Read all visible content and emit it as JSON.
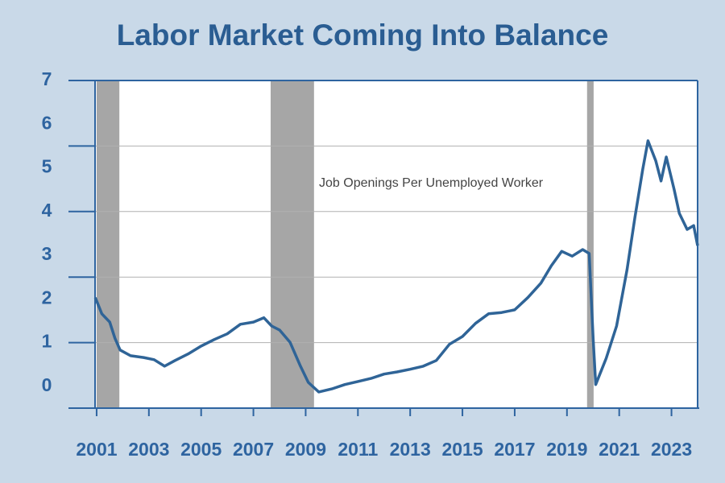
{
  "chart_data": {
    "type": "line",
    "title": "Labor Market Coming Into Balance",
    "annotation": "Job Openings Per Unemployed Worker",
    "x": [
      2000.95,
      2001.2,
      2001.5,
      2001.7,
      2001.9,
      2002.3,
      2002.8,
      2003.2,
      2003.6,
      2004.0,
      2004.5,
      2005.0,
      2005.5,
      2006.0,
      2006.5,
      2007.0,
      2007.4,
      2007.7,
      2008.0,
      2008.4,
      2008.8,
      2009.1,
      2009.5,
      2010.0,
      2010.5,
      2011.0,
      2011.5,
      2012.0,
      2012.5,
      2013.0,
      2013.5,
      2014.0,
      2014.5,
      2015.0,
      2015.5,
      2016.0,
      2016.5,
      2017.0,
      2017.5,
      2018.0,
      2018.4,
      2018.8,
      2019.2,
      2019.6,
      2019.85,
      2020.0,
      2020.1,
      2020.5,
      2020.9,
      2021.3,
      2021.6,
      2021.9,
      2022.1,
      2022.4,
      2022.6,
      2022.8,
      2023.1,
      2023.3,
      2023.6,
      2023.85,
      2024.0
    ],
    "series": [
      {
        "name": "Job Openings Per Unemployed Worker",
        "color": "#2f6497",
        "values": [
          2.03,
          1.66,
          1.47,
          1.1,
          0.83,
          0.7,
          0.66,
          0.61,
          0.46,
          0.59,
          0.74,
          0.92,
          1.07,
          1.2,
          1.42,
          1.47,
          1.57,
          1.38,
          1.29,
          1.01,
          0.46,
          0.09,
          -0.13,
          -0.06,
          0.04,
          0.11,
          0.18,
          0.28,
          0.33,
          0.39,
          0.46,
          0.59,
          0.96,
          1.14,
          1.44,
          1.66,
          1.69,
          1.75,
          2.03,
          2.36,
          2.76,
          3.09,
          2.98,
          3.13,
          3.04,
          1.1,
          0.04,
          0.64,
          1.38,
          2.67,
          3.87,
          4.97,
          5.62,
          5.16,
          4.7,
          5.25,
          4.51,
          3.96,
          3.59,
          3.68,
          3.22
        ]
      }
    ],
    "recessions": [
      [
        2001.0,
        2001.87
      ],
      [
        2007.66,
        2009.32
      ],
      [
        2019.77,
        2020.02
      ]
    ],
    "recession_color": "#a6a6a6",
    "xlim": [
      2000.94,
      2024.0
    ],
    "xticks": [
      2001,
      2003,
      2005,
      2007,
      2009,
      2011,
      2013,
      2015,
      2017,
      2019,
      2021,
      2023
    ],
    "ylim": [
      -0.5,
      7
    ],
    "yticks": [
      0,
      1,
      2,
      3,
      4,
      5,
      6,
      7
    ],
    "gridlines": [
      -0.5,
      1,
      2.5,
      4,
      5.5,
      7
    ],
    "grid": true
  }
}
